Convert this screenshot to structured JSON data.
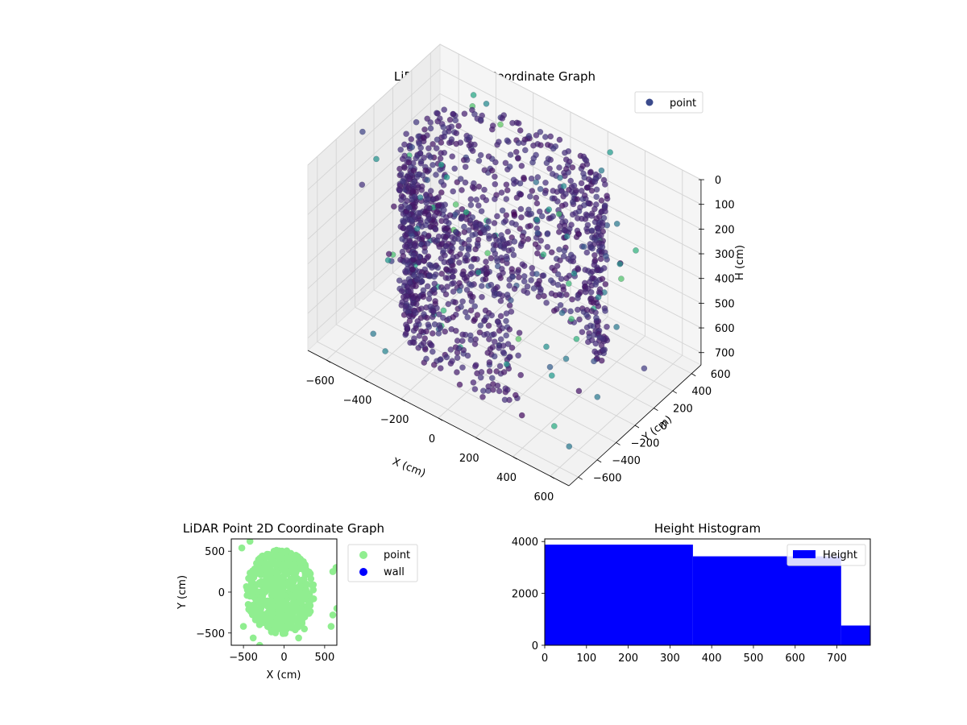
{
  "figure": {},
  "chart_data": [
    {
      "type": "scatter",
      "projection": "3d",
      "title": "LiDAR Point 3D Coordinate Graph",
      "xlabel": "X (cm)",
      "ylabel": "Y (cm)",
      "zlabel": "H (cm)",
      "xlim": [
        -700,
        700
      ],
      "ylim": [
        -700,
        700
      ],
      "zlim": [
        750,
        0
      ],
      "z_inverted": true,
      "x_ticks": [
        "−600",
        "−400",
        "−200",
        "0",
        "200",
        "400",
        "600"
      ],
      "y_ticks": [
        "−600",
        "−400",
        "−200",
        "0",
        "200",
        "400",
        "600"
      ],
      "z_ticks": [
        "0",
        "100",
        "200",
        "300",
        "400",
        "500",
        "600",
        "700"
      ],
      "grid": true,
      "colormap": "viridis",
      "legend": {
        "placement": "top-right",
        "entries": [
          {
            "label": "point",
            "color": "#3b4a8c"
          }
        ]
      },
      "series": [
        {
          "name": "point",
          "structure": "dense curved wall of points forming a horseshoe around the origin, radius about 500 cm, spanning heights 0 to 700 cm, plus sparse scattered outliers",
          "wall_radius_cm": 500,
          "height_range_cm": [
            0,
            700
          ],
          "sample_outliers": [
            {
              "x": 600,
              "y": -500,
              "h": 700
            },
            {
              "x": -600,
              "y": 400,
              "h": 650
            },
            {
              "x": 300,
              "y": 600,
              "h": 300
            },
            {
              "x": 500,
              "y": 200,
              "h": 500
            },
            {
              "x": -400,
              "y": -600,
              "h": 600
            },
            {
              "x": 650,
              "y": -300,
              "h": 550
            }
          ]
        }
      ]
    },
    {
      "type": "scatter",
      "title": "LiDAR Point 2D Coordinate Graph",
      "xlabel": "X (cm)",
      "ylabel": "Y (cm)",
      "xlim": [
        -650,
        650
      ],
      "ylim": [
        -650,
        650
      ],
      "x_ticks": [
        "−500",
        "0",
        "500"
      ],
      "y_ticks": [
        "−500",
        "0",
        "500"
      ],
      "legend": {
        "placement": "outside-right",
        "entries": [
          {
            "label": "point",
            "color": "#90ee90"
          },
          {
            "label": "wall",
            "color": "#0000ff"
          }
        ]
      },
      "series": [
        {
          "name": "point",
          "color": "#90ee90",
          "structure": "dense filled disc of points centred near (-50, 0) with radius about 450 cm, plus scattered points near the edges"
        },
        {
          "name": "wall",
          "color": "#0000ff",
          "values": []
        }
      ]
    },
    {
      "type": "bar",
      "subtype": "histogram",
      "title": "Height Histogram",
      "xlim": [
        0,
        780
      ],
      "ylim": [
        0,
        4100
      ],
      "x_ticks": [
        "0",
        "100",
        "200",
        "300",
        "400",
        "500",
        "600",
        "700"
      ],
      "y_ticks": [
        "0",
        "2000",
        "4000"
      ],
      "legend": {
        "placement": "top-right",
        "entries": [
          {
            "label": "Height",
            "color": "#0000ff"
          }
        ]
      },
      "series": [
        {
          "name": "Height",
          "color": "#0000ff",
          "bins": [
            {
              "start": 0,
              "end": 355,
              "count": 3880
            },
            {
              "start": 355,
              "end": 710,
              "count": 3430
            },
            {
              "start": 710,
              "end": 780,
              "count": 760
            }
          ]
        }
      ]
    }
  ]
}
